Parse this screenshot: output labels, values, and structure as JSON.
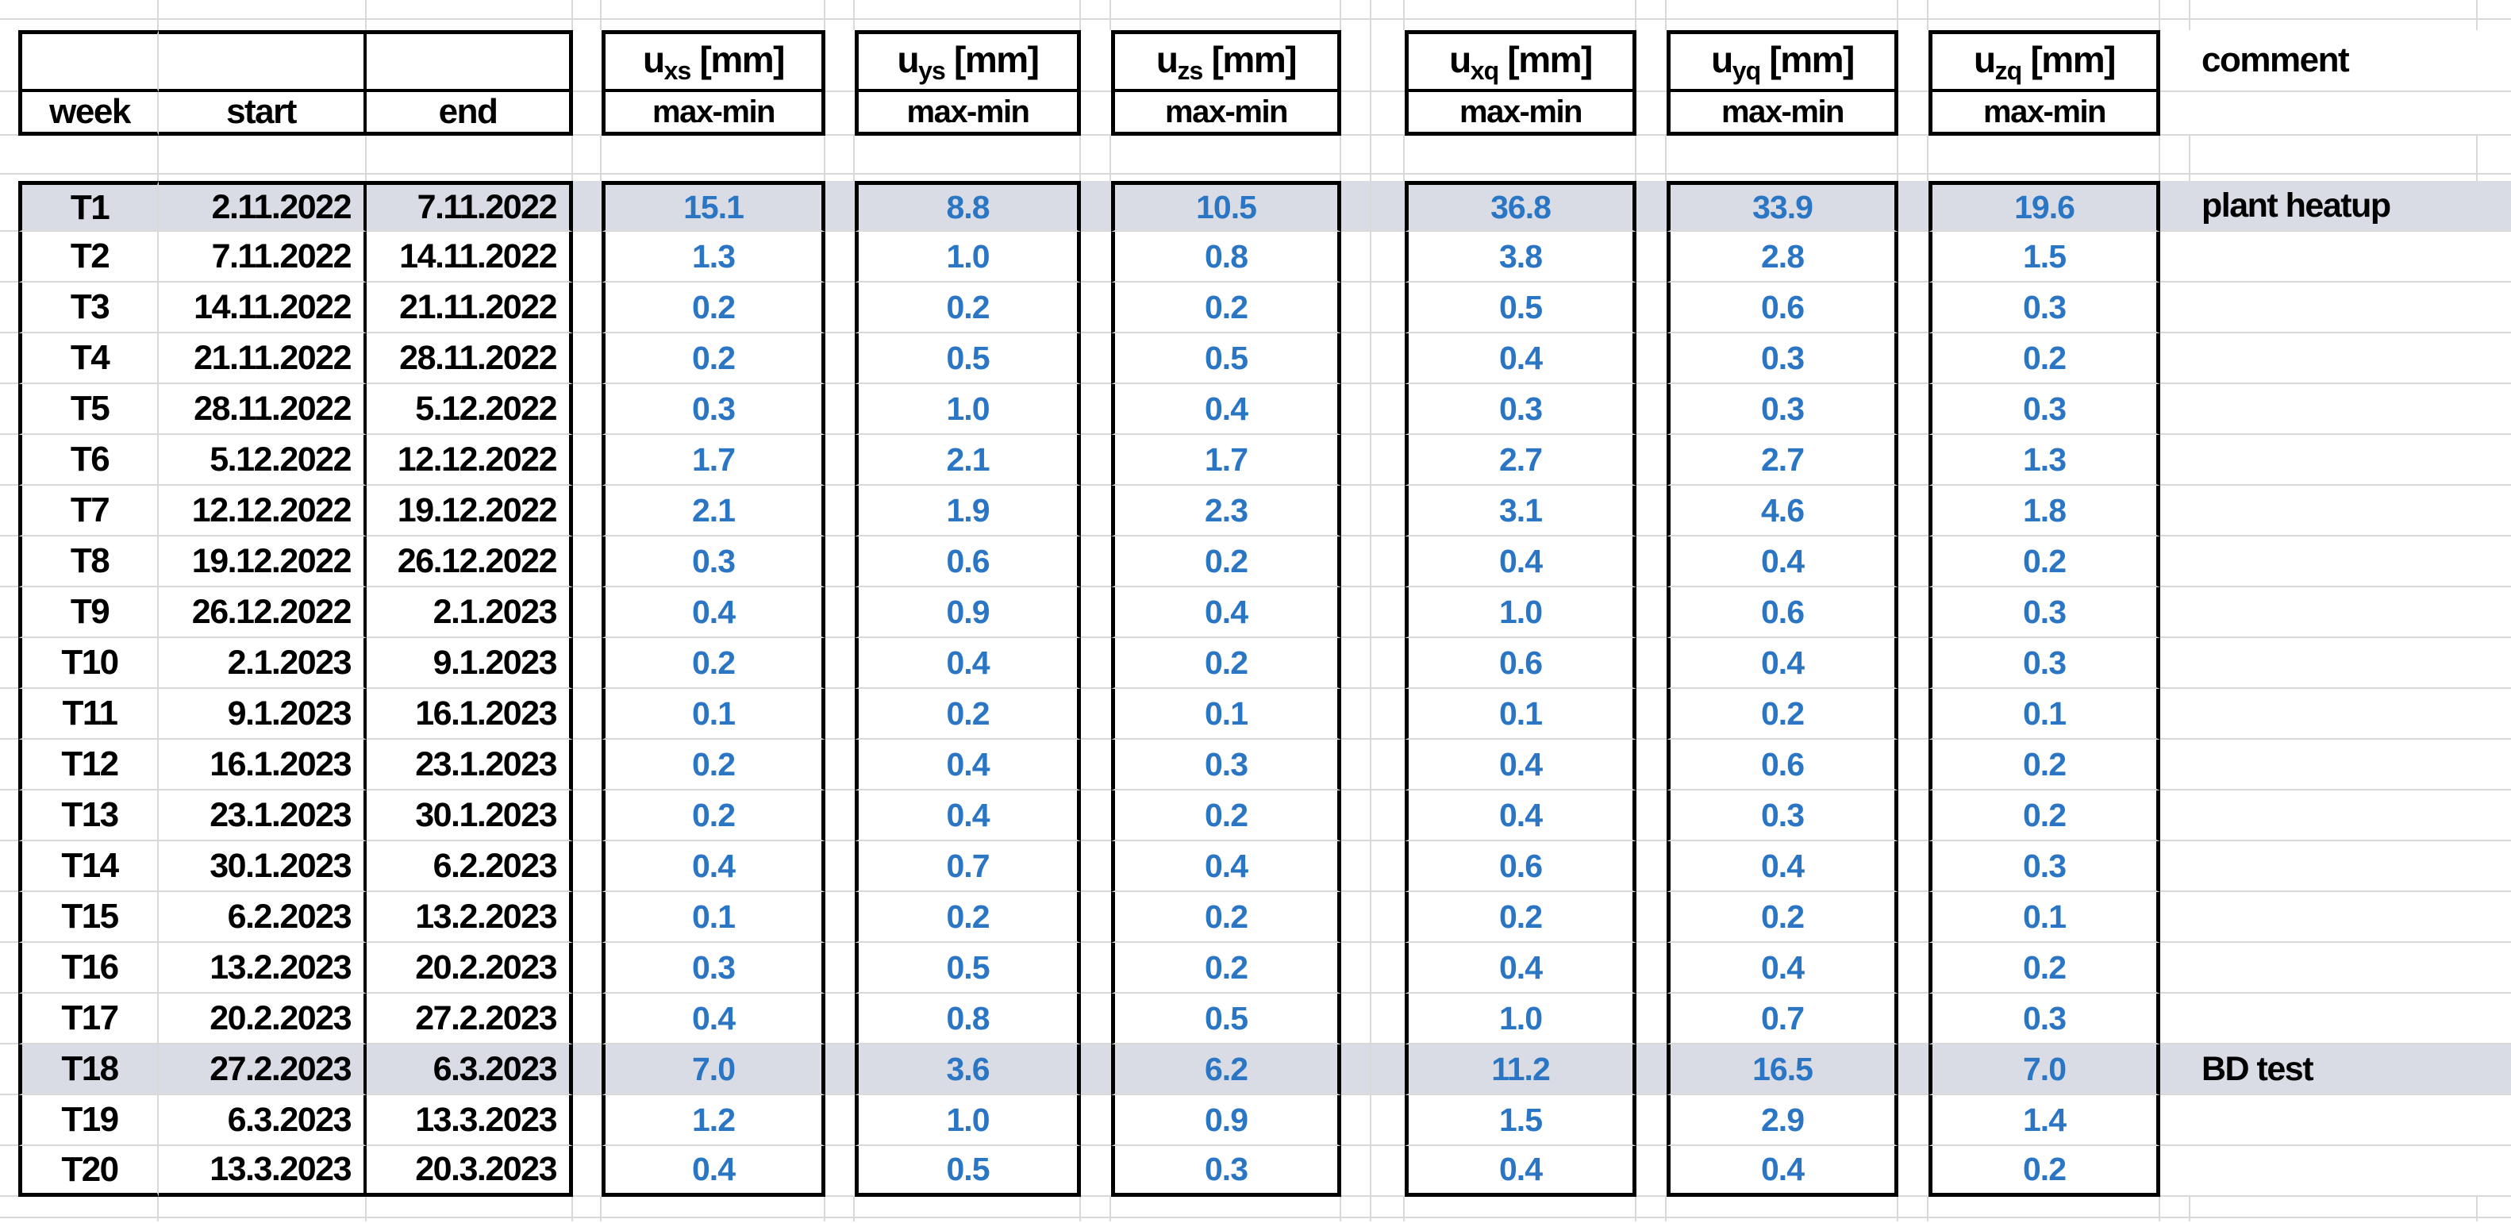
{
  "header": {
    "week": "week",
    "start": "start",
    "end": "end",
    "comment": "comment",
    "max_min": "max-min",
    "u_columns": [
      {
        "letter": "u",
        "sub": "xs",
        "unit": "[mm]"
      },
      {
        "letter": "u",
        "sub": "ys",
        "unit": "[mm]"
      },
      {
        "letter": "u",
        "sub": "zs",
        "unit": "[mm]"
      },
      {
        "letter": "u",
        "sub": "xq",
        "unit": "[mm]"
      },
      {
        "letter": "u",
        "sub": "yq",
        "unit": "[mm]"
      },
      {
        "letter": "u",
        "sub": "zq",
        "unit": "[mm]"
      }
    ]
  },
  "colors": {
    "value_text": "#2B76C4",
    "row_highlight": "#D9DCE4",
    "gridline": "#D9D9D9",
    "border": "#000000",
    "background": "#FFFFFF"
  },
  "rows": [
    {
      "week": "T1",
      "start": "2.11.2022",
      "end": "7.11.2022",
      "values": [
        "15.1",
        "8.8",
        "10.5",
        "36.8",
        "33.9",
        "19.6"
      ],
      "comment": "plant heatup",
      "highlight": true
    },
    {
      "week": "T2",
      "start": "7.11.2022",
      "end": "14.11.2022",
      "values": [
        "1.3",
        "1.0",
        "0.8",
        "3.8",
        "2.8",
        "1.5"
      ],
      "comment": "",
      "highlight": false
    },
    {
      "week": "T3",
      "start": "14.11.2022",
      "end": "21.11.2022",
      "values": [
        "0.2",
        "0.2",
        "0.2",
        "0.5",
        "0.6",
        "0.3"
      ],
      "comment": "",
      "highlight": false
    },
    {
      "week": "T4",
      "start": "21.11.2022",
      "end": "28.11.2022",
      "values": [
        "0.2",
        "0.5",
        "0.5",
        "0.4",
        "0.3",
        "0.2"
      ],
      "comment": "",
      "highlight": false
    },
    {
      "week": "T5",
      "start": "28.11.2022",
      "end": "5.12.2022",
      "values": [
        "0.3",
        "1.0",
        "0.4",
        "0.3",
        "0.3",
        "0.3"
      ],
      "comment": "",
      "highlight": false
    },
    {
      "week": "T6",
      "start": "5.12.2022",
      "end": "12.12.2022",
      "values": [
        "1.7",
        "2.1",
        "1.7",
        "2.7",
        "2.7",
        "1.3"
      ],
      "comment": "",
      "highlight": false
    },
    {
      "week": "T7",
      "start": "12.12.2022",
      "end": "19.12.2022",
      "values": [
        "2.1",
        "1.9",
        "2.3",
        "3.1",
        "4.6",
        "1.8"
      ],
      "comment": "",
      "highlight": false
    },
    {
      "week": "T8",
      "start": "19.12.2022",
      "end": "26.12.2022",
      "values": [
        "0.3",
        "0.6",
        "0.2",
        "0.4",
        "0.4",
        "0.2"
      ],
      "comment": "",
      "highlight": false
    },
    {
      "week": "T9",
      "start": "26.12.2022",
      "end": "2.1.2023",
      "values": [
        "0.4",
        "0.9",
        "0.4",
        "1.0",
        "0.6",
        "0.3"
      ],
      "comment": "",
      "highlight": false
    },
    {
      "week": "T10",
      "start": "2.1.2023",
      "end": "9.1.2023",
      "values": [
        "0.2",
        "0.4",
        "0.2",
        "0.6",
        "0.4",
        "0.3"
      ],
      "comment": "",
      "highlight": false
    },
    {
      "week": "T11",
      "start": "9.1.2023",
      "end": "16.1.2023",
      "values": [
        "0.1",
        "0.2",
        "0.1",
        "0.1",
        "0.2",
        "0.1"
      ],
      "comment": "",
      "highlight": false
    },
    {
      "week": "T12",
      "start": "16.1.2023",
      "end": "23.1.2023",
      "values": [
        "0.2",
        "0.4",
        "0.3",
        "0.4",
        "0.6",
        "0.2"
      ],
      "comment": "",
      "highlight": false
    },
    {
      "week": "T13",
      "start": "23.1.2023",
      "end": "30.1.2023",
      "values": [
        "0.2",
        "0.4",
        "0.2",
        "0.4",
        "0.3",
        "0.2"
      ],
      "comment": "",
      "highlight": false
    },
    {
      "week": "T14",
      "start": "30.1.2023",
      "end": "6.2.2023",
      "values": [
        "0.4",
        "0.7",
        "0.4",
        "0.6",
        "0.4",
        "0.3"
      ],
      "comment": "",
      "highlight": false
    },
    {
      "week": "T15",
      "start": "6.2.2023",
      "end": "13.2.2023",
      "values": [
        "0.1",
        "0.2",
        "0.2",
        "0.2",
        "0.2",
        "0.1"
      ],
      "comment": "",
      "highlight": false
    },
    {
      "week": "T16",
      "start": "13.2.2023",
      "end": "20.2.2023",
      "values": [
        "0.3",
        "0.5",
        "0.2",
        "0.4",
        "0.4",
        "0.2"
      ],
      "comment": "",
      "highlight": false
    },
    {
      "week": "T17",
      "start": "20.2.2023",
      "end": "27.2.2023",
      "values": [
        "0.4",
        "0.8",
        "0.5",
        "1.0",
        "0.7",
        "0.3"
      ],
      "comment": "",
      "highlight": false
    },
    {
      "week": "T18",
      "start": "27.2.2023",
      "end": "6.3.2023",
      "values": [
        "7.0",
        "3.6",
        "6.2",
        "11.2",
        "16.5",
        "7.0"
      ],
      "comment": "BD test",
      "highlight": true
    },
    {
      "week": "T19",
      "start": "6.3.2023",
      "end": "13.3.2023",
      "values": [
        "1.2",
        "1.0",
        "0.9",
        "1.5",
        "2.9",
        "1.4"
      ],
      "comment": "",
      "highlight": false
    },
    {
      "week": "T20",
      "start": "13.3.2023",
      "end": "20.3.2023",
      "values": [
        "0.4",
        "0.5",
        "0.3",
        "0.4",
        "0.4",
        "0.2"
      ],
      "comment": "",
      "highlight": false
    }
  ]
}
